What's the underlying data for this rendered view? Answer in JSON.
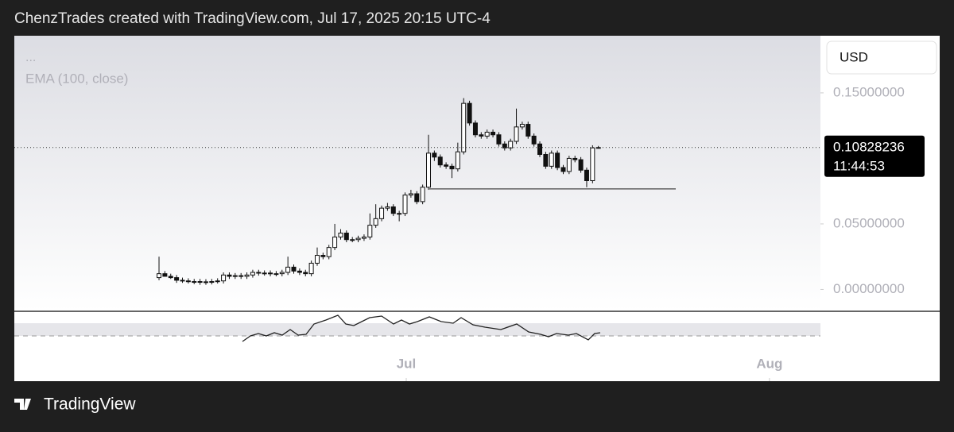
{
  "header": "ChenzTrades created with TradingView.com, Jul 17, 2025 20:15 UTC-4",
  "footer": {
    "brand": "TradingView"
  },
  "chart_data": {
    "type": "candlestick",
    "legend": [
      "...",
      "EMA (100, close)"
    ],
    "currency": "USD",
    "countdown": "11:44:53",
    "categories": [
      null,
      null,
      null,
      null,
      null,
      null,
      null,
      null,
      null,
      null,
      null,
      null,
      null,
      null,
      null,
      null,
      null,
      null,
      null,
      null,
      null,
      null,
      null,
      null,
      null,
      null,
      null,
      null,
      null,
      null,
      null,
      null,
      null,
      null,
      null,
      null,
      null,
      null,
      null,
      null,
      null,
      null,
      null,
      null,
      null,
      null,
      null,
      null,
      null,
      null,
      null,
      null,
      null,
      null,
      null,
      null,
      null,
      null,
      null,
      null,
      null,
      null,
      null,
      null,
      null,
      null,
      null,
      null,
      null,
      null,
      null,
      null,
      null,
      null,
      null,
      null
    ],
    "open": [
      0.009,
      0.012,
      0.01,
      0.009,
      0.007,
      0.0065,
      0.006,
      0.006,
      0.0055,
      0.0058,
      0.006,
      0.0065,
      0.011,
      0.01,
      0.0105,
      0.01,
      0.011,
      0.013,
      0.0125,
      0.0125,
      0.012,
      0.012,
      0.013,
      0.017,
      0.014,
      0.013,
      0.012,
      0.02,
      0.026,
      0.025,
      0.032,
      0.04,
      0.043,
      0.038,
      0.038,
      0.039,
      0.04,
      0.049,
      0.054,
      0.062,
      0.063,
      0.058,
      0.058,
      0.072,
      0.073,
      0.067,
      0.078,
      0.104,
      0.101,
      0.095,
      0.094,
      0.092,
      0.105,
      0.142,
      0.127,
      0.118,
      0.117,
      0.12,
      0.118,
      0.111,
      0.108,
      0.113,
      0.124,
      0.126,
      0.117,
      0.111,
      0.103,
      0.094,
      0.104,
      0.093,
      0.09,
      0.1,
      0.099,
      0.091,
      0.083,
      0.108
    ],
    "high": [
      0.025,
      0.014,
      0.012,
      0.011,
      0.009,
      0.0085,
      0.008,
      0.008,
      0.0078,
      0.008,
      0.0085,
      0.013,
      0.013,
      0.0125,
      0.0125,
      0.013,
      0.015,
      0.015,
      0.0145,
      0.0145,
      0.014,
      0.015,
      0.025,
      0.019,
      0.016,
      0.015,
      0.022,
      0.032,
      0.028,
      0.034,
      0.05,
      0.046,
      0.045,
      0.04,
      0.041,
      0.042,
      0.058,
      0.065,
      0.064,
      0.066,
      0.065,
      0.06,
      0.074,
      0.076,
      0.075,
      0.08,
      0.118,
      0.106,
      0.103,
      0.097,
      0.096,
      0.112,
      0.146,
      0.144,
      0.129,
      0.12,
      0.122,
      0.122,
      0.12,
      0.113,
      0.115,
      0.138,
      0.128,
      0.128,
      0.119,
      0.113,
      0.105,
      0.106,
      0.106,
      0.095,
      0.102,
      0.102,
      0.101,
      0.093,
      0.11,
      0.1095
    ],
    "low": [
      0.007,
      0.01,
      0.008,
      0.005,
      0.005,
      0.0045,
      0.004,
      0.0035,
      0.0035,
      0.0038,
      0.0045,
      0.0045,
      0.008,
      0.008,
      0.008,
      0.008,
      0.009,
      0.0105,
      0.0105,
      0.01,
      0.01,
      0.01,
      0.011,
      0.012,
      0.011,
      0.01,
      0.01,
      0.018,
      0.023,
      0.023,
      0.03,
      0.038,
      0.036,
      0.036,
      0.036,
      0.037,
      0.038,
      0.047,
      0.052,
      0.06,
      0.056,
      0.052,
      0.056,
      0.07,
      0.065,
      0.065,
      0.076,
      0.098,
      0.093,
      0.092,
      0.085,
      0.09,
      0.103,
      0.125,
      0.116,
      0.115,
      0.115,
      0.116,
      0.109,
      0.106,
      0.106,
      0.111,
      0.122,
      0.115,
      0.109,
      0.101,
      0.092,
      0.092,
      0.091,
      0.088,
      0.088,
      0.097,
      0.089,
      0.078,
      0.081,
      0.1075
    ],
    "close": [
      0.012,
      0.01,
      0.009,
      0.007,
      0.0065,
      0.006,
      0.006,
      0.0055,
      0.0058,
      0.006,
      0.0065,
      0.011,
      0.01,
      0.0105,
      0.01,
      0.011,
      0.013,
      0.0125,
      0.0125,
      0.012,
      0.012,
      0.013,
      0.017,
      0.014,
      0.013,
      0.012,
      0.02,
      0.026,
      0.025,
      0.032,
      0.04,
      0.043,
      0.038,
      0.038,
      0.039,
      0.04,
      0.049,
      0.054,
      0.062,
      0.063,
      0.058,
      0.058,
      0.072,
      0.073,
      0.067,
      0.078,
      0.104,
      0.101,
      0.095,
      0.094,
      0.092,
      0.105,
      0.142,
      0.127,
      0.118,
      0.117,
      0.12,
      0.118,
      0.111,
      0.108,
      0.113,
      0.124,
      0.126,
      0.117,
      0.111,
      0.103,
      0.094,
      0.104,
      0.093,
      0.09,
      0.1,
      0.099,
      0.091,
      0.083,
      0.108,
      0.10828236
    ],
    "hline": 0.0767,
    "xlim": [
      -24.7,
      112.9
    ],
    "xticks": [
      {
        "value": 42.2,
        "label": "Jul"
      },
      {
        "value": 104.2,
        "label": "Aug"
      }
    ],
    "ylim": [
      -0.0167,
      0.1936
    ],
    "yticks": [
      {
        "value": 0,
        "label": "0.00000000"
      },
      {
        "value": 0.05,
        "label": "0.05000000"
      },
      {
        "value": 0.15,
        "label": "0.15000000"
      }
    ]
  }
}
